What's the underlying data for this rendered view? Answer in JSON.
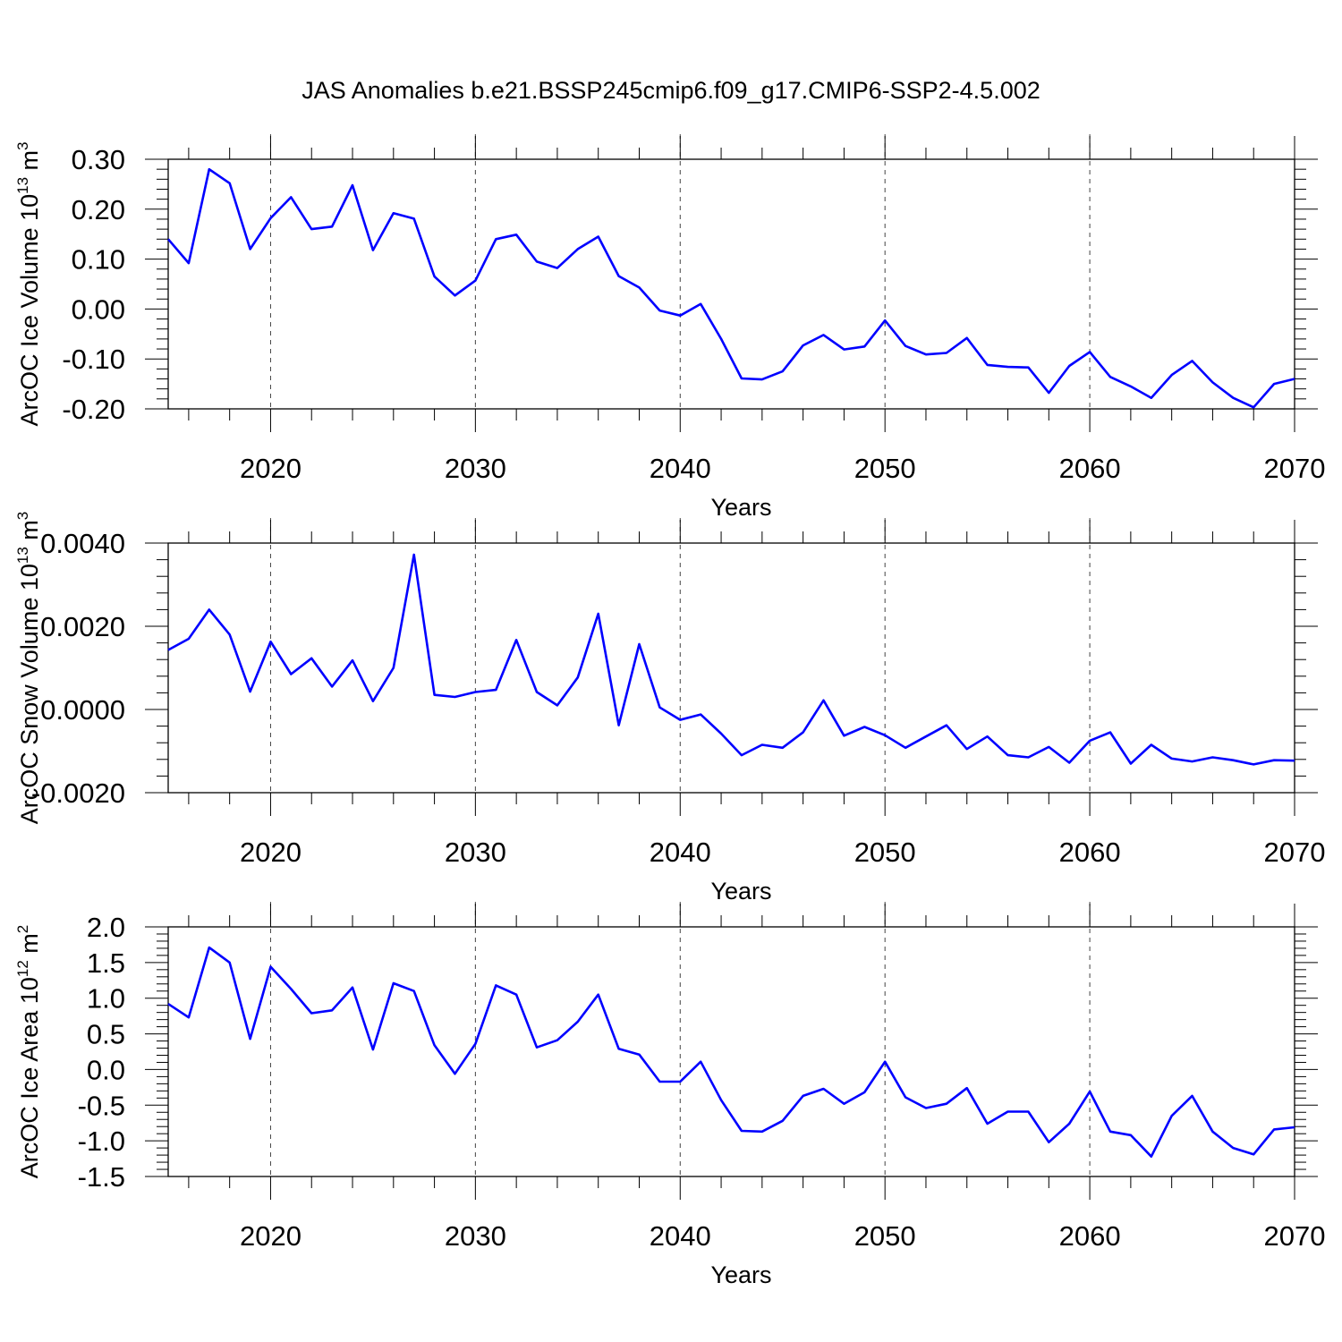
{
  "title": "JAS Anomalies b.e21.BSSP245cmip6.f09_g17.CMIP6-SSP2-4.5.002",
  "colors": {
    "line": "#0000ff",
    "axis": "#000000",
    "grid": "#444444"
  },
  "chart_data": [
    {
      "type": "line",
      "ylabel": "ArcOC Ice Volume 10",
      "ylabel_sup1": "13",
      "ylabel_mid": " m",
      "ylabel_sup2": "3",
      "xlabel": "Years",
      "xlim": [
        2015,
        2070
      ],
      "ylim": [
        -0.2,
        0.3
      ],
      "yticks": [
        -0.2,
        -0.1,
        0.0,
        0.1,
        0.2,
        0.3
      ],
      "ytick_labels": [
        "-0.20",
        "-0.10",
        "0.00",
        "0.10",
        "0.20",
        "0.30"
      ],
      "yminor_step": 0.02,
      "xticks": [
        2020,
        2030,
        2040,
        2050,
        2060,
        2070
      ],
      "xtick_labels": [
        "2020",
        "2030",
        "2040",
        "2050",
        "2060",
        "2070"
      ],
      "grid_x": true,
      "x": [
        2015,
        2016,
        2017,
        2018,
        2019,
        2020,
        2021,
        2022,
        2023,
        2024,
        2025,
        2026,
        2027,
        2028,
        2029,
        2030,
        2031,
        2032,
        2033,
        2034,
        2035,
        2036,
        2037,
        2038,
        2039,
        2040,
        2041,
        2042,
        2043,
        2044,
        2045,
        2046,
        2047,
        2048,
        2049,
        2050,
        2051,
        2052,
        2053,
        2054,
        2055,
        2056,
        2057,
        2058,
        2059,
        2060,
        2061,
        2062,
        2063,
        2064,
        2065,
        2066,
        2067,
        2068,
        2069,
        2070
      ],
      "values": [
        0.14,
        0.092,
        0.28,
        0.252,
        0.12,
        0.182,
        0.224,
        0.16,
        0.165,
        0.248,
        0.118,
        0.192,
        0.181,
        0.065,
        0.027,
        0.057,
        0.14,
        0.149,
        0.095,
        0.082,
        0.12,
        0.145,
        0.066,
        0.043,
        -0.003,
        -0.013,
        0.01,
        -0.06,
        -0.139,
        -0.141,
        -0.125,
        -0.073,
        -0.052,
        -0.081,
        -0.075,
        -0.023,
        -0.074,
        -0.091,
        -0.088,
        -0.058,
        -0.112,
        -0.116,
        -0.117,
        -0.168,
        -0.114,
        -0.086,
        -0.136,
        -0.155,
        -0.178,
        -0.132,
        -0.104,
        -0.147,
        -0.178,
        -0.197,
        -0.15,
        -0.14
      ]
    },
    {
      "type": "line",
      "ylabel": "ArcOC Snow Volume 10",
      "ylabel_sup1": "13",
      "ylabel_mid": " m",
      "ylabel_sup2": "3",
      "xlabel": "Years",
      "xlim": [
        2015,
        2070
      ],
      "ylim": [
        -0.002,
        0.004
      ],
      "yticks": [
        -0.002,
        0.0,
        0.002,
        0.004
      ],
      "ytick_labels": [
        "-0.0020",
        "0.0000",
        "0.0020",
        "0.0040"
      ],
      "yminor_step": 0.0004,
      "xticks": [
        2020,
        2030,
        2040,
        2050,
        2060,
        2070
      ],
      "xtick_labels": [
        "2020",
        "2030",
        "2040",
        "2050",
        "2060",
        "2070"
      ],
      "grid_x": true,
      "x": [
        2015,
        2016,
        2017,
        2018,
        2019,
        2020,
        2021,
        2022,
        2023,
        2024,
        2025,
        2026,
        2027,
        2028,
        2029,
        2030,
        2031,
        2032,
        2033,
        2034,
        2035,
        2036,
        2037,
        2038,
        2039,
        2040,
        2041,
        2042,
        2043,
        2044,
        2045,
        2046,
        2047,
        2048,
        2049,
        2050,
        2051,
        2052,
        2053,
        2054,
        2055,
        2056,
        2057,
        2058,
        2059,
        2060,
        2061,
        2062,
        2063,
        2064,
        2065,
        2066,
        2067,
        2068,
        2069,
        2070
      ],
      "values": [
        0.00143,
        0.0017,
        0.0024,
        0.0018,
        0.00043,
        0.00163,
        0.00085,
        0.00123,
        0.00055,
        0.00118,
        0.0002,
        0.001,
        0.00372,
        0.00035,
        0.0003,
        0.00042,
        0.00047,
        0.00167,
        0.00042,
        0.0001,
        0.00077,
        0.0023,
        -0.00038,
        0.00157,
        5e-05,
        -0.00025,
        -0.00012,
        -0.00058,
        -0.0011,
        -0.00085,
        -0.00092,
        -0.00055,
        0.00022,
        -0.00063,
        -0.00042,
        -0.00062,
        -0.00092,
        -0.00065,
        -0.00038,
        -0.00095,
        -0.00065,
        -0.0011,
        -0.00115,
        -0.0009,
        -0.00128,
        -0.00075,
        -0.00055,
        -0.0013,
        -0.00085,
        -0.00118,
        -0.00125,
        -0.00115,
        -0.00122,
        -0.00132,
        -0.00122,
        -0.00123
      ]
    },
    {
      "type": "line",
      "ylabel": "ArcOC Ice Area 10",
      "ylabel_sup1": "12",
      "ylabel_mid": " m",
      "ylabel_sup2": "2",
      "xlabel": "Years",
      "xlim": [
        2015,
        2070
      ],
      "ylim": [
        -1.5,
        2.0
      ],
      "yticks": [
        -1.5,
        -1.0,
        -0.5,
        0.0,
        0.5,
        1.0,
        1.5,
        2.0
      ],
      "ytick_labels": [
        "-1.5",
        "-1.0",
        "-0.5",
        "0.0",
        "0.5",
        "1.0",
        "1.5",
        "2.0"
      ],
      "yminor_step": 0.1,
      "xticks": [
        2020,
        2030,
        2040,
        2050,
        2060,
        2070
      ],
      "xtick_labels": [
        "2020",
        "2030",
        "2040",
        "2050",
        "2060",
        "2070"
      ],
      "grid_x": true,
      "x": [
        2015,
        2016,
        2017,
        2018,
        2019,
        2020,
        2021,
        2022,
        2023,
        2024,
        2025,
        2026,
        2027,
        2028,
        2029,
        2030,
        2031,
        2032,
        2033,
        2034,
        2035,
        2036,
        2037,
        2038,
        2039,
        2040,
        2041,
        2042,
        2043,
        2044,
        2045,
        2046,
        2047,
        2048,
        2049,
        2050,
        2051,
        2052,
        2053,
        2054,
        2055,
        2056,
        2057,
        2058,
        2059,
        2060,
        2061,
        2062,
        2063,
        2064,
        2065,
        2066,
        2067,
        2068,
        2069,
        2070
      ],
      "values": [
        0.92,
        0.73,
        1.71,
        1.5,
        0.43,
        1.44,
        1.13,
        0.79,
        0.83,
        1.15,
        0.28,
        1.21,
        1.1,
        0.34,
        -0.06,
        0.36,
        1.18,
        1.05,
        0.31,
        0.41,
        0.67,
        1.05,
        0.29,
        0.21,
        -0.17,
        -0.17,
        0.11,
        -0.43,
        -0.86,
        -0.87,
        -0.72,
        -0.37,
        -0.27,
        -0.48,
        -0.32,
        0.11,
        -0.39,
        -0.54,
        -0.48,
        -0.26,
        -0.76,
        -0.59,
        -0.59,
        -1.02,
        -0.76,
        -0.31,
        -0.87,
        -0.92,
        -1.22,
        -0.65,
        -0.37,
        -0.87,
        -1.1,
        -1.19,
        -0.84,
        -0.81
      ]
    }
  ]
}
